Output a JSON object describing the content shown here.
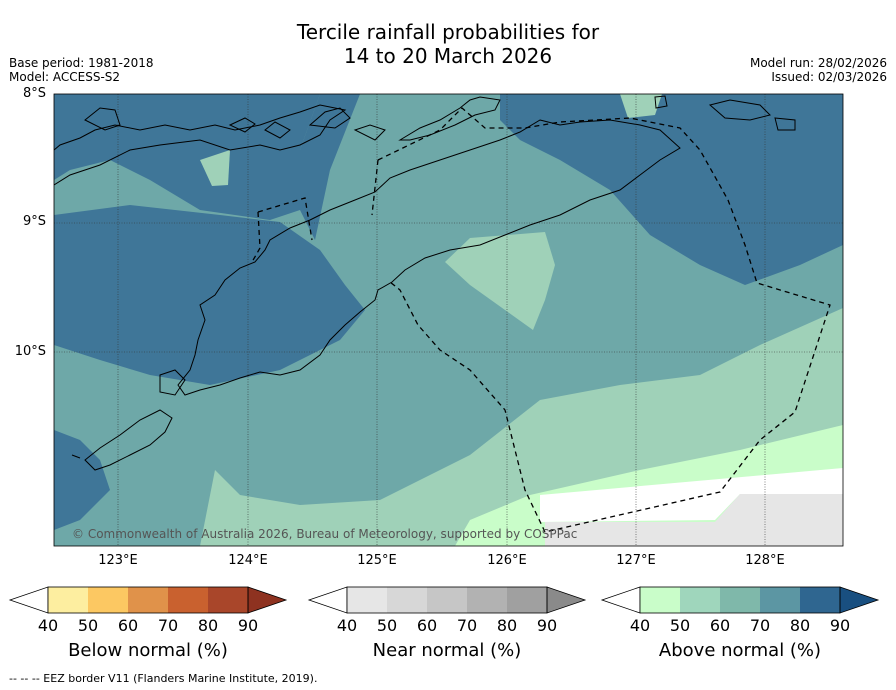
{
  "title_line1": "Tercile rainfall probabilities for",
  "title_line2": "14 to 20 March 2026",
  "base_period": "Base period: 1981-2018",
  "model": "Model: ACCESS-S2",
  "model_run": "Model run: 28/02/2026",
  "issued": "Issued: 02/03/2026",
  "copyright": "© Commonwealth of Australia 2026, Bureau of Meteorology, supported by COSPPac",
  "lat_labels": [
    "8°S",
    "9°S",
    "10°S"
  ],
  "lon_labels": [
    "123°E",
    "124°E",
    "125°E",
    "126°E",
    "127°E",
    "128°E"
  ],
  "colorbars": [
    {
      "title": "Below normal (%)",
      "ticks": [
        "40",
        "50",
        "60",
        "70",
        "80",
        "90"
      ],
      "colors": [
        "#ffffff",
        "#fdeea0",
        "#fcc862",
        "#e0924a",
        "#c9612f",
        "#a9462a",
        "#8e3220"
      ]
    },
    {
      "title": "Near normal (%)",
      "ticks": [
        "40",
        "50",
        "60",
        "70",
        "80",
        "90"
      ],
      "colors": [
        "#ffffff",
        "#e6e6e6",
        "#d7d7d7",
        "#c6c6c6",
        "#b2b2b2",
        "#a0a0a0",
        "#8a8a8a"
      ]
    },
    {
      "title": "Above normal (%)",
      "ticks": [
        "40",
        "50",
        "60",
        "70",
        "80",
        "90"
      ],
      "colors": [
        "#ffffff",
        "#c9fdc9",
        "#9fd6bc",
        "#7fb8aa",
        "#5c96a3",
        "#2f6690",
        "#194f80"
      ]
    }
  ],
  "footer": "--  --  -- EEZ border V11 (Flanders Marine Institute, 2019).",
  "colors": {
    "above_50": "#9fd1b8",
    "above_60": "#6ea8a8",
    "above_70": "#3f7698",
    "above_40": "#c9fdc9",
    "near_40": "#e6e6e6"
  }
}
